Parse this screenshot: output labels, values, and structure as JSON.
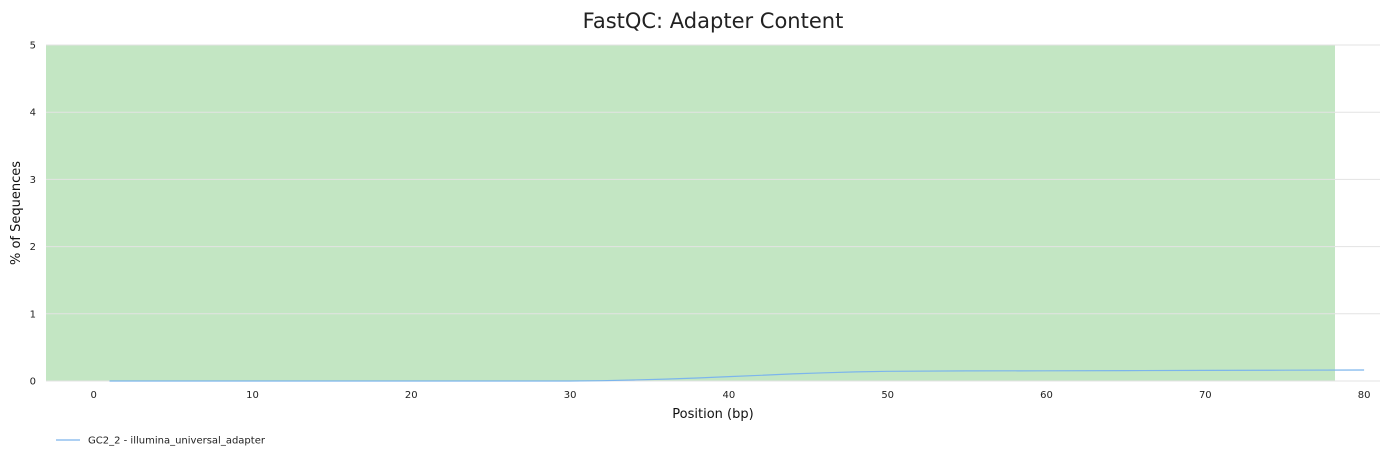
{
  "chart_data": {
    "type": "line",
    "title": "FastQC: Adapter Content",
    "xlabel": "Position (bp)",
    "ylabel": "% of Sequences",
    "xlim": [
      -3,
      81
    ],
    "ylim": [
      0,
      5
    ],
    "x_ticks": [
      0,
      10,
      20,
      30,
      40,
      50,
      60,
      70,
      80
    ],
    "y_ticks": [
      0,
      1,
      2,
      3,
      4,
      5
    ],
    "grid": true,
    "legend_position": "bottom-left",
    "colors": {
      "series": "#7cb5ec",
      "pass_band": "#c3e6c3",
      "grid": "#e3e3e3"
    },
    "pass_band": {
      "y_from": 0,
      "y_to": 5,
      "x_from": -3,
      "x_to": 81
    },
    "series": [
      {
        "name": "GC2_2 - illumina_universal_adapter",
        "x": [
          1,
          5,
          10,
          15,
          20,
          25,
          30,
          32,
          34,
          36,
          38,
          40,
          42,
          44,
          46,
          48,
          50,
          55,
          60,
          65,
          70,
          75,
          80
        ],
        "y": [
          0,
          0,
          0,
          0,
          0,
          0,
          0,
          0.005,
          0.015,
          0.028,
          0.045,
          0.065,
          0.085,
          0.105,
          0.122,
          0.135,
          0.145,
          0.15,
          0.152,
          0.155,
          0.158,
          0.16,
          0.163
        ]
      }
    ]
  }
}
